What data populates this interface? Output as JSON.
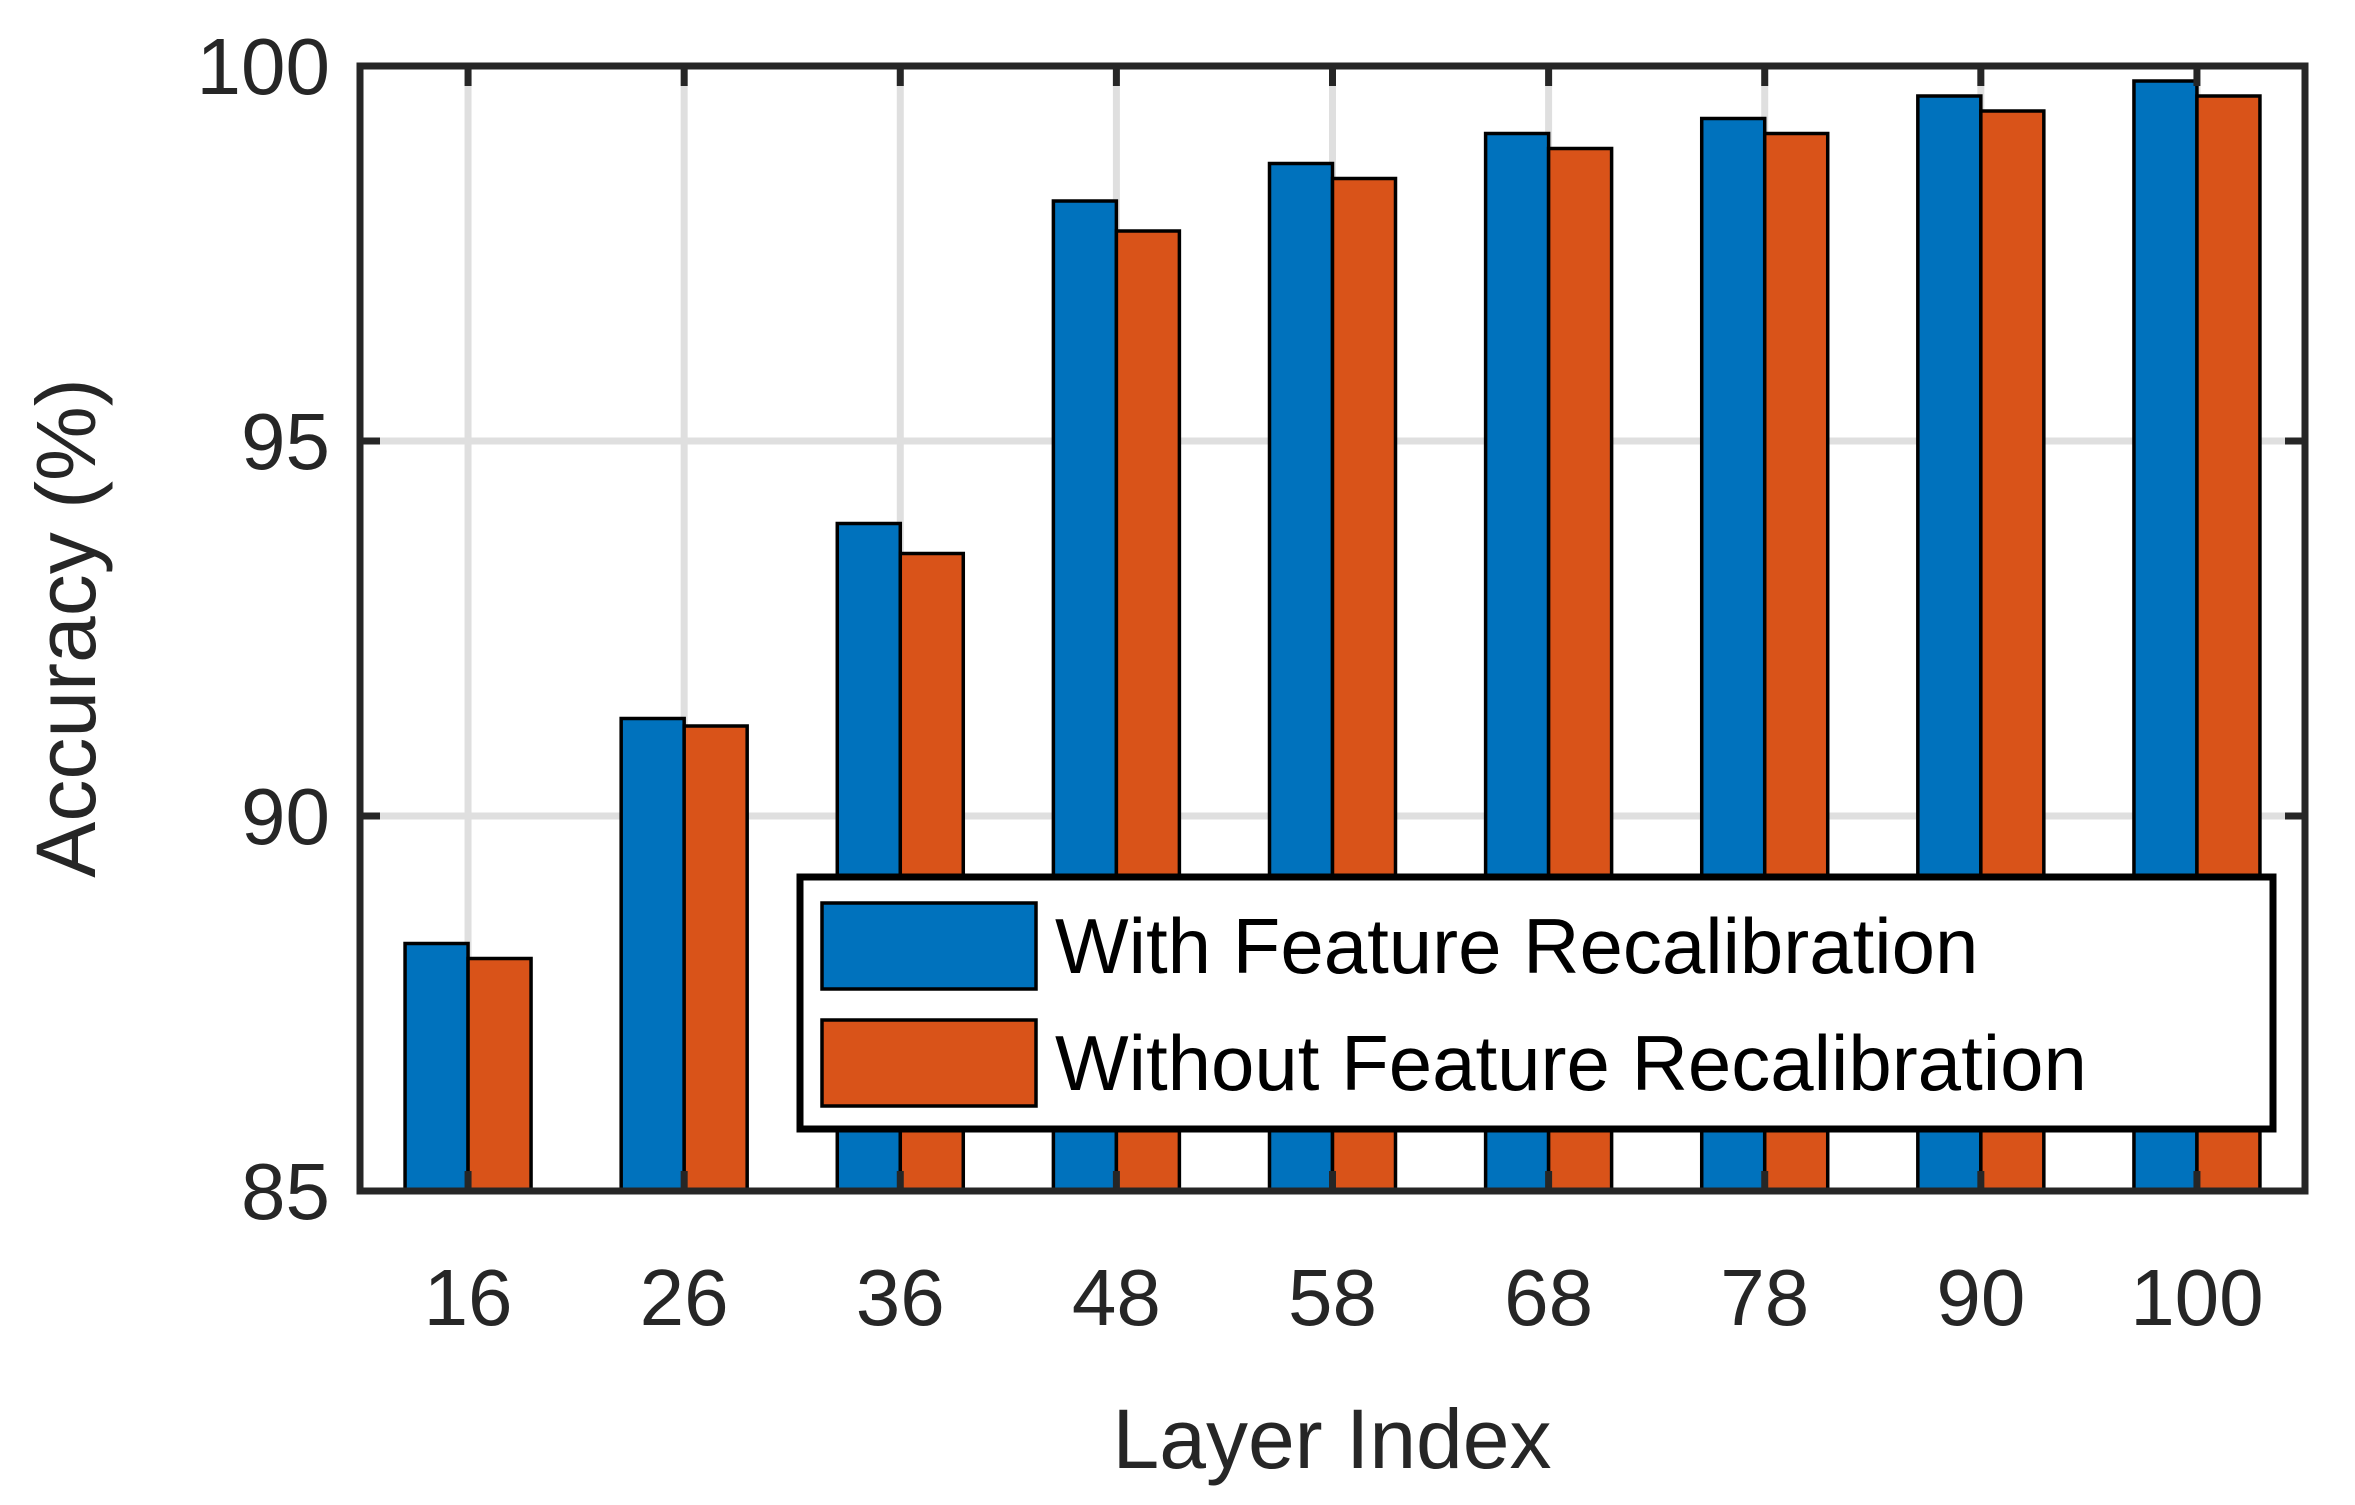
{
  "chart_data": {
    "type": "bar",
    "xlabel": "Layer Index",
    "ylabel": "Accuracy (%)",
    "categories": [
      "16",
      "26",
      "36",
      "48",
      "58",
      "68",
      "78",
      "90",
      "100"
    ],
    "ylim": [
      85,
      100
    ],
    "yticks": [
      85,
      90,
      95,
      100
    ],
    "grid": true,
    "legend_position": "bottom-right",
    "series": [
      {
        "name": "With Feature Recalibration",
        "color": "#0072BD",
        "values": [
          88.3,
          91.3,
          93.9,
          98.2,
          98.7,
          99.1,
          99.3,
          99.6,
          99.8
        ]
      },
      {
        "name": "Without Feature Recalibration",
        "color": "#D95319",
        "values": [
          88.1,
          91.2,
          93.5,
          97.8,
          98.5,
          98.9,
          99.1,
          99.4,
          99.6
        ]
      }
    ]
  }
}
